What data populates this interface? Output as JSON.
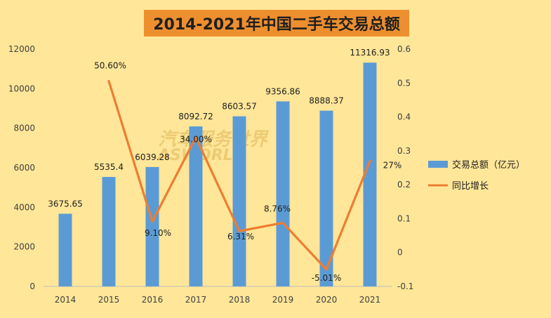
{
  "chart_data": {
    "type": "bar",
    "title": "2014-2021年中国二手车交易总额",
    "categories": [
      "2014",
      "2015",
      "2016",
      "2017",
      "2018",
      "2019",
      "2020",
      "2021"
    ],
    "series": [
      {
        "name": "交易总额（亿元）",
        "type": "bar",
        "axis": "left",
        "color": "#5B9BD5",
        "values": [
          3675.65,
          5535.4,
          6039.28,
          8092.72,
          8603.57,
          9356.86,
          8888.37,
          11316.93
        ],
        "labels": [
          "3675.65",
          "5535.4",
          "6039.28",
          "8092.72",
          "8603.57",
          "9356.86",
          "8888.37",
          "11316.93"
        ]
      },
      {
        "name": "同比增长",
        "type": "line",
        "axis": "right",
        "color": "#ED7D31",
        "values": [
          null,
          0.506,
          0.091,
          0.34,
          0.0631,
          0.0876,
          -0.0501,
          0.27
        ],
        "labels": [
          "",
          "50.60%",
          "9.10%",
          "34.00%",
          "6.31%",
          "8.76%",
          "-5.01%",
          "27%"
        ]
      }
    ],
    "y_left": {
      "min": 0,
      "max": 12000,
      "ticks": [
        "0",
        "2000",
        "4000",
        "6000",
        "8000",
        "10000",
        "12000"
      ]
    },
    "y_right": {
      "min": -0.1,
      "max": 0.6,
      "ticks": [
        "-0.1",
        "0",
        "0.1",
        "0.2",
        "0.3",
        "0.4",
        "0.5",
        "0.6"
      ]
    },
    "grid": false,
    "legend_position": "right"
  },
  "watermark": {
    "line1": "汽车服务世界",
    "line2": "ASWORLD"
  },
  "colors": {
    "background": "#FFE699",
    "title_bg": "#ED8F2E"
  }
}
